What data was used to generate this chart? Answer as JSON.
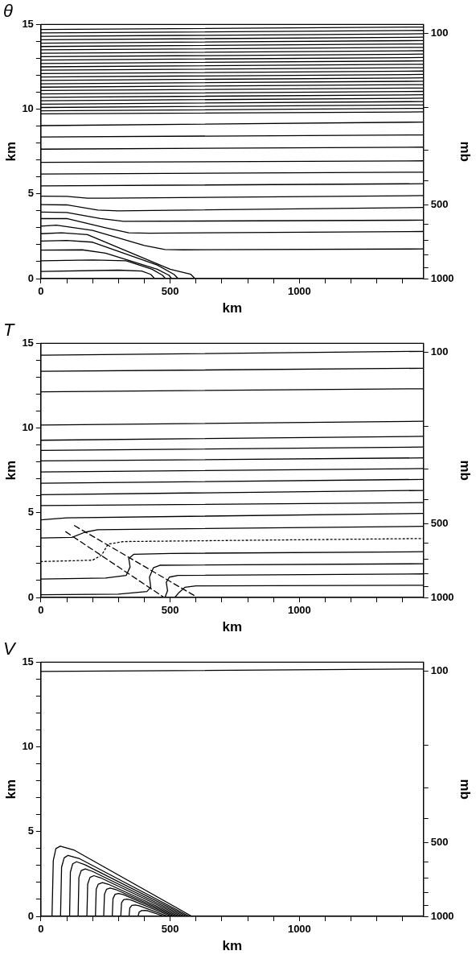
{
  "chart_data": [
    {
      "type": "line",
      "title": "θ",
      "xlabel": "km",
      "ylabel": "km",
      "y2label": "mb",
      "xlim": [
        0,
        1480
      ],
      "ylim": [
        0,
        15
      ],
      "y2lim": [
        1000,
        92
      ],
      "log": "y2",
      "xticks": [
        0,
        {
          "value": 100,
          "label": null
        },
        {
          "value": 200,
          "label": null
        },
        {
          "value": 300,
          "label": null
        },
        {
          "value": 400,
          "label": null
        },
        500,
        {
          "value": 600,
          "label": null
        },
        {
          "value": 700,
          "label": null
        },
        {
          "value": 800,
          "label": null
        },
        {
          "value": 900,
          "label": null
        },
        1000,
        {
          "value": 1100,
          "label": null
        },
        {
          "value": 1200,
          "label": null
        },
        {
          "value": 1300,
          "label": null
        },
        {
          "value": 1400,
          "label": null
        }
      ],
      "yticks": [
        0,
        {
          "value": 1,
          "label": null
        },
        {
          "value": 2,
          "label": null
        },
        {
          "value": 3,
          "label": null
        },
        {
          "value": 4,
          "label": null
        },
        5,
        {
          "value": 6,
          "label": null
        },
        {
          "value": 7,
          "label": null
        },
        {
          "value": 8,
          "label": null
        },
        {
          "value": 9,
          "label": null
        },
        10,
        {
          "value": 11,
          "label": null
        },
        {
          "value": 12,
          "label": null
        },
        {
          "value": 13,
          "label": null
        },
        {
          "value": 14,
          "label": null
        },
        15
      ],
      "y2ticks": [
        1000,
        {
          "value": 900,
          "label": null
        },
        {
          "value": 800,
          "label": null
        },
        {
          "value": 700,
          "label": null
        },
        {
          "value": 600,
          "label": null
        },
        500,
        {
          "value": 400,
          "label": null
        },
        {
          "value": 300,
          "label": null
        },
        {
          "value": 200,
          "label": null
        },
        100
      ],
      "grid": false,
      "legend": false,
      "marker": "none",
      "line_style": "solid",
      "series": [
        {
          "color": "#000000",
          "x": [
            0,
            300,
            390,
            425,
            440
          ],
          "values": [
            0.42,
            0.5,
            0.45,
            0.25,
            0
          ]
        },
        {
          "color": "#000000",
          "x": [
            0,
            200,
            330,
            430,
            470,
            482
          ],
          "values": [
            1.05,
            1.1,
            1.05,
            0.55,
            0.2,
            0
          ]
        },
        {
          "color": "#000000",
          "x": [
            0,
            160,
            250,
            450,
            495,
            506
          ],
          "values": [
            1.68,
            1.7,
            1.5,
            0.55,
            0.2,
            0
          ]
        },
        {
          "color": "#000000",
          "x": [
            0,
            100,
            200,
            450,
            515,
            531
          ],
          "values": [
            2.22,
            2.25,
            2.15,
            0.8,
            0.25,
            0
          ]
        },
        {
          "color": "#000000",
          "x": [
            0,
            80,
            180,
            500,
            580,
            596
          ],
          "values": [
            2.65,
            2.7,
            2.6,
            0.55,
            0.25,
            0
          ]
        },
        {
          "color": "#000000",
          "x": [
            0,
            60,
            200,
            400,
            480,
            550,
            1480
          ],
          "values": [
            3.1,
            3.15,
            2.85,
            1.95,
            1.72,
            1.7,
            1.75
          ]
        },
        {
          "color": "#000000",
          "x": [
            0,
            100,
            250,
            340,
            420,
            1480
          ],
          "values": [
            3.54,
            3.55,
            3.0,
            2.7,
            2.68,
            2.78
          ]
        },
        {
          "color": "#000000",
          "x": [
            0,
            100,
            230,
            320,
            1480
          ],
          "values": [
            3.93,
            3.9,
            3.55,
            3.38,
            3.45
          ]
        },
        {
          "color": "#000000",
          "x": [
            0,
            100,
            220,
            300,
            1480
          ],
          "values": [
            4.37,
            4.35,
            4.05,
            4.0,
            4.2
          ]
        },
        {
          "color": "#000000",
          "x": [
            0,
            100,
            180,
            250,
            1480
          ],
          "values": [
            4.87,
            4.85,
            4.75,
            4.75,
            4.9
          ]
        },
        {
          "color": "#000000",
          "x": [
            0,
            1480
          ],
          "values": [
            5.47,
            5.6
          ]
        },
        {
          "color": "#000000",
          "x": [
            0,
            1480
          ],
          "values": [
            6.17,
            6.28
          ]
        },
        {
          "color": "#000000",
          "x": [
            0,
            1480
          ],
          "values": [
            6.86,
            6.95
          ]
        },
        {
          "color": "#000000",
          "x": [
            0,
            1480
          ],
          "values": [
            7.64,
            7.76
          ]
        },
        {
          "color": "#000000",
          "x": [
            0,
            1480
          ],
          "values": [
            8.36,
            8.48
          ]
        },
        {
          "color": "#000000",
          "x": [
            0,
            1480
          ],
          "values": [
            9.03,
            9.24
          ]
        },
        {
          "color": "#000000",
          "x": [
            0,
            1480
          ],
          "values": [
            9.73,
            9.84
          ]
        },
        {
          "color": "#000000",
          "x": [
            0,
            1480
          ],
          "values": [
            9.9,
            10.05
          ]
        },
        {
          "color": "#000000",
          "x": [
            0,
            1480
          ],
          "values": [
            10.1,
            10.25
          ]
        },
        {
          "color": "#000000",
          "x": [
            0,
            1480
          ],
          "values": [
            10.3,
            10.45
          ]
        },
        {
          "color": "#000000",
          "x": [
            0,
            1480
          ],
          "values": [
            10.5,
            10.65
          ]
        },
        {
          "color": "#000000",
          "x": [
            0,
            1480
          ],
          "values": [
            10.7,
            10.85
          ]
        },
        {
          "color": "#000000",
          "x": [
            0,
            1480
          ],
          "values": [
            10.9,
            11.05
          ]
        },
        {
          "color": "#000000",
          "x": [
            0,
            1480
          ],
          "values": [
            11.1,
            11.25
          ]
        },
        {
          "color": "#000000",
          "x": [
            0,
            1480
          ],
          "values": [
            11.3,
            11.45
          ]
        },
        {
          "color": "#000000",
          "x": [
            0,
            1480
          ],
          "values": [
            11.5,
            11.65
          ]
        },
        {
          "color": "#000000",
          "x": [
            0,
            1480
          ],
          "values": [
            11.7,
            11.85
          ]
        },
        {
          "color": "#000000",
          "x": [
            0,
            1480
          ],
          "values": [
            11.9,
            12.05
          ]
        },
        {
          "color": "#000000",
          "x": [
            0,
            1480
          ],
          "values": [
            12.1,
            12.25
          ]
        },
        {
          "color": "#000000",
          "x": [
            0,
            1480
          ],
          "values": [
            12.3,
            12.45
          ]
        },
        {
          "color": "#000000",
          "x": [
            0,
            1480
          ],
          "values": [
            12.5,
            12.65
          ]
        },
        {
          "color": "#000000",
          "x": [
            0,
            1480
          ],
          "values": [
            12.7,
            12.85
          ]
        },
        {
          "color": "#000000",
          "x": [
            0,
            1480
          ],
          "values": [
            12.9,
            13.05
          ]
        },
        {
          "color": "#000000",
          "x": [
            0,
            1480
          ],
          "values": [
            13.1,
            13.25
          ]
        },
        {
          "color": "#000000",
          "x": [
            0,
            1480
          ],
          "values": [
            13.3,
            13.45
          ]
        },
        {
          "color": "#000000",
          "x": [
            0,
            1480
          ],
          "values": [
            13.5,
            13.65
          ]
        },
        {
          "color": "#000000",
          "x": [
            0,
            1480
          ],
          "values": [
            13.7,
            13.85
          ]
        },
        {
          "color": "#000000",
          "x": [
            0,
            1480
          ],
          "values": [
            13.9,
            14.05
          ]
        },
        {
          "color": "#000000",
          "x": [
            0,
            1480
          ],
          "values": [
            14.1,
            14.25
          ]
        },
        {
          "color": "#000000",
          "x": [
            0,
            1480
          ],
          "values": [
            14.3,
            14.45
          ]
        },
        {
          "color": "#000000",
          "x": [
            0,
            1480
          ],
          "values": [
            14.5,
            14.65
          ]
        },
        {
          "color": "#000000",
          "x": [
            0,
            1480
          ],
          "values": [
            14.7,
            14.85
          ]
        }
      ]
    },
    {
      "type": "line",
      "title": "T",
      "xlabel": "km",
      "ylabel": "km",
      "y2label": "mb",
      "xlim": [
        0,
        1480
      ],
      "ylim": [
        0,
        15
      ],
      "y2lim": [
        1000,
        92
      ],
      "log": "y2",
      "xticks": [
        0,
        {
          "value": 100,
          "label": null
        },
        {
          "value": 200,
          "label": null
        },
        {
          "value": 300,
          "label": null
        },
        {
          "value": 400,
          "label": null
        },
        500,
        {
          "value": 600,
          "label": null
        },
        {
          "value": 700,
          "label": null
        },
        {
          "value": 800,
          "label": null
        },
        {
          "value": 900,
          "label": null
        },
        1000,
        {
          "value": 1100,
          "label": null
        },
        {
          "value": 1200,
          "label": null
        },
        {
          "value": 1300,
          "label": null
        },
        {
          "value": 1400,
          "label": null
        }
      ],
      "yticks": [
        0,
        {
          "value": 1,
          "label": null
        },
        {
          "value": 2,
          "label": null
        },
        {
          "value": 3,
          "label": null
        },
        {
          "value": 4,
          "label": null
        },
        5,
        {
          "value": 6,
          "label": null
        },
        {
          "value": 7,
          "label": null
        },
        {
          "value": 8,
          "label": null
        },
        {
          "value": 9,
          "label": null
        },
        10,
        {
          "value": 11,
          "label": null
        },
        {
          "value": 12,
          "label": null
        },
        {
          "value": 13,
          "label": null
        },
        {
          "value": 14,
          "label": null
        },
        15
      ],
      "y2ticks": [
        1000,
        {
          "value": 900,
          "label": null
        },
        {
          "value": 800,
          "label": null
        },
        {
          "value": 700,
          "label": null
        },
        {
          "value": 600,
          "label": null
        },
        500,
        {
          "value": 400,
          "label": null
        },
        {
          "value": 300,
          "label": null
        },
        {
          "value": 200,
          "label": null
        },
        100
      ],
      "grid": false,
      "legend": false,
      "marker": "none",
      "line_style": "solid",
      "series": [
        {
          "color": "#000000",
          "x": [
            0,
            1480
          ],
          "values": [
            14.3,
            14.53
          ]
        },
        {
          "color": "#000000",
          "x": [
            0,
            1480
          ],
          "values": [
            13.35,
            13.53
          ]
        },
        {
          "color": "#000000",
          "x": [
            0,
            1480
          ],
          "values": [
            12.14,
            12.32
          ]
        },
        {
          "color": "#000000",
          "x": [
            0,
            1480
          ],
          "values": [
            10.18,
            10.4
          ]
        },
        {
          "color": "#000000",
          "x": [
            0,
            1480
          ],
          "values": [
            9.28,
            9.51
          ]
        },
        {
          "color": "#000000",
          "x": [
            0,
            1480
          ],
          "values": [
            8.68,
            8.88
          ]
        },
        {
          "color": "#000000",
          "x": [
            0,
            1480
          ],
          "values": [
            8.06,
            8.24
          ]
        },
        {
          "color": "#000000",
          "x": [
            0,
            1480
          ],
          "values": [
            7.41,
            7.61
          ]
        },
        {
          "color": "#000000",
          "x": [
            0,
            1480
          ],
          "values": [
            6.74,
            6.97
          ]
        },
        {
          "color": "#000000",
          "x": [
            0,
            1480
          ],
          "values": [
            6.07,
            6.32
          ]
        },
        {
          "color": "#000000",
          "x": [
            0,
            1480
          ],
          "values": [
            5.42,
            5.6
          ]
        },
        {
          "color": "#000000",
          "x": [
            0,
            100,
            1480
          ],
          "values": [
            4.58,
            4.7,
            4.96
          ]
        },
        {
          "color": "#000000",
          "x": [
            0,
            120,
            170,
            220,
            1480
          ],
          "values": [
            3.51,
            3.55,
            3.85,
            4.0,
            4.2
          ]
        },
        {
          "color": "#000000",
          "line_style": "dotted",
          "x": [
            0,
            200,
            235,
            260,
            320,
            1480
          ],
          "values": [
            2.12,
            2.2,
            2.5,
            3.15,
            3.3,
            3.48
          ]
        },
        {
          "color": "#000000",
          "x": [
            0,
            250,
            330,
            345,
            340,
            360,
            500,
            1480
          ],
          "values": [
            1.09,
            1.15,
            1.3,
            1.8,
            2.3,
            2.55,
            2.6,
            2.7
          ]
        },
        {
          "color": "#000000",
          "x": [
            0,
            300,
            410,
            425,
            420,
            435,
            460,
            1480
          ],
          "values": [
            0.16,
            0.2,
            0.35,
            0.6,
            1.2,
            1.75,
            1.9,
            1.99
          ]
        },
        {
          "color": "#000000",
          "x": [
            480,
            490,
            485,
            497,
            530,
            1480
          ],
          "values": [
            0,
            0.4,
            0.9,
            1.2,
            1.3,
            1.39
          ]
        },
        {
          "color": "#000000",
          "x": [
            518,
            535,
            557,
            600,
            1480
          ],
          "values": [
            0,
            0.3,
            0.6,
            0.68,
            0.72
          ]
        },
        {
          "color": "#000000",
          "line_style": "dashed",
          "x": [
            96,
            477
          ],
          "values": [
            3.88,
            0
          ]
        },
        {
          "color": "#000000",
          "line_style": "dashed",
          "x": [
            130,
            598
          ],
          "values": [
            4.24,
            0.07
          ]
        }
      ]
    },
    {
      "type": "line",
      "title": "V",
      "xlabel": "km",
      "ylabel": "km",
      "y2label": "mb",
      "xlim": [
        0,
        1480
      ],
      "ylim": [
        0,
        15
      ],
      "y2lim": [
        1000,
        92
      ],
      "log": "y2",
      "xticks": [
        0,
        {
          "value": 100,
          "label": null
        },
        {
          "value": 200,
          "label": null
        },
        {
          "value": 300,
          "label": null
        },
        {
          "value": 400,
          "label": null
        },
        500,
        {
          "value": 600,
          "label": null
        },
        {
          "value": 700,
          "label": null
        },
        {
          "value": 800,
          "label": null
        },
        {
          "value": 900,
          "label": null
        },
        1000,
        {
          "value": 1100,
          "label": null
        },
        {
          "value": 1200,
          "label": null
        },
        {
          "value": 1300,
          "label": null
        },
        {
          "value": 1400,
          "label": null
        }
      ],
      "yticks": [
        0,
        {
          "value": 1,
          "label": null
        },
        {
          "value": 2,
          "label": null
        },
        {
          "value": 3,
          "label": null
        },
        {
          "value": 4,
          "label": null
        },
        5,
        {
          "value": 6,
          "label": null
        },
        {
          "value": 7,
          "label": null
        },
        {
          "value": 8,
          "label": null
        },
        {
          "value": 9,
          "label": null
        },
        10,
        {
          "value": 11,
          "label": null
        },
        {
          "value": 12,
          "label": null
        },
        {
          "value": 13,
          "label": null
        },
        {
          "value": 14,
          "label": null
        },
        15
      ],
      "y2ticks": [
        1000,
        {
          "value": 900,
          "label": null
        },
        {
          "value": 800,
          "label": null
        },
        {
          "value": 700,
          "label": null
        },
        {
          "value": 600,
          "label": null
        },
        500,
        {
          "value": 400,
          "label": null
        },
        {
          "value": 300,
          "label": null
        },
        {
          "value": 200,
          "label": null
        },
        100
      ],
      "grid": false,
      "legend": false,
      "marker": "none",
      "line_style": "solid",
      "series": [
        {
          "color": "#000000",
          "x": [
            0,
            1480
          ],
          "values": [
            14.45,
            14.6
          ]
        },
        {
          "color": "#000000",
          "x": [
            43,
            48,
            58,
            75,
            130,
            584
          ],
          "values": [
            0,
            3.3,
            4.0,
            4.14,
            3.9,
            0
          ]
        },
        {
          "color": "#000000",
          "x": [
            76,
            80,
            90,
            105,
            150,
            574
          ],
          "values": [
            0,
            2.9,
            3.45,
            3.6,
            3.4,
            0
          ]
        },
        {
          "color": "#000000",
          "x": [
            111,
            114,
            123,
            138,
            170,
            565
          ],
          "values": [
            0,
            2.6,
            3.1,
            3.22,
            3.05,
            0
          ]
        },
        {
          "color": "#000000",
          "x": [
            144,
            147,
            156,
            172,
            200,
            555
          ],
          "values": [
            0,
            2.3,
            2.7,
            2.8,
            2.65,
            0
          ]
        },
        {
          "color": "#000000",
          "x": [
            178,
            181,
            190,
            205,
            230,
            545
          ],
          "values": [
            0,
            1.9,
            2.3,
            2.4,
            2.28,
            0
          ]
        },
        {
          "color": "#000000",
          "x": [
            211,
            214,
            222,
            238,
            260,
            535
          ],
          "values": [
            0,
            1.6,
            1.9,
            1.99,
            1.9,
            0
          ]
        },
        {
          "color": "#000000",
          "x": [
            243,
            246,
            254,
            268,
            290,
            525
          ],
          "values": [
            0,
            1.3,
            1.6,
            1.67,
            1.58,
            0
          ]
        },
        {
          "color": "#000000",
          "x": [
            276,
            279,
            287,
            300,
            320,
            515
          ],
          "values": [
            0,
            1.05,
            1.3,
            1.35,
            1.28,
            0
          ]
        },
        {
          "color": "#000000",
          "x": [
            309,
            312,
            320,
            333,
            350,
            505
          ],
          "values": [
            0,
            0.8,
            0.98,
            1.02,
            0.96,
            0
          ]
        },
        {
          "color": "#000000",
          "x": [
            341,
            344,
            352,
            365,
            380,
            492
          ],
          "values": [
            0,
            0.5,
            0.65,
            0.67,
            0.62,
            0
          ]
        },
        {
          "color": "#000000",
          "x": [
            376,
            380,
            390,
            402,
            415,
            478
          ],
          "values": [
            0,
            0.25,
            0.34,
            0.35,
            0.32,
            0
          ]
        }
      ]
    }
  ]
}
